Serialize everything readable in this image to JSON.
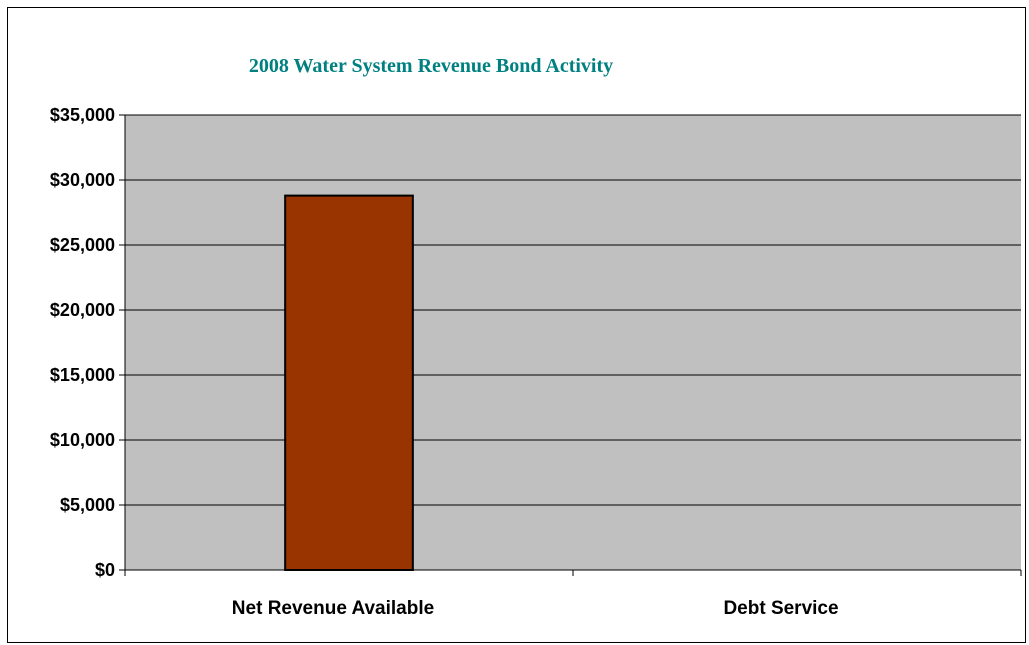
{
  "chart_data": {
    "type": "bar",
    "title": "2008 Water System Revenue Bond Activity",
    "xlabel": "",
    "ylabel": "",
    "categories": [
      "Net Revenue Available",
      "Debt Service"
    ],
    "values": [
      28800,
      0
    ],
    "ylim": [
      0,
      35000
    ],
    "y_ticks": [
      0,
      5000,
      10000,
      15000,
      20000,
      25000,
      30000,
      35000
    ],
    "y_tick_labels": [
      "$0",
      "$5,000",
      "$10,000",
      "$15,000",
      "$20,000",
      "$25,000",
      "$30,000",
      "$35,000"
    ],
    "grid": true,
    "legend": "none",
    "colors": {
      "title": "#008080",
      "bar_fill": "#993300",
      "bar_stroke": "#000000",
      "plot_bg": "#c0c0c0",
      "gridline": "#000000"
    }
  }
}
